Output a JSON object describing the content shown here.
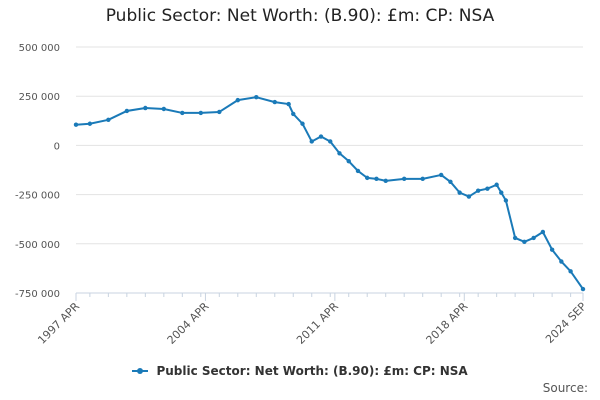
{
  "chart_data": {
    "type": "line",
    "title": "Public Sector: Net Worth: (B.90): £m: CP: NSA",
    "xlabel": "",
    "ylabel": "",
    "ylim": [
      -750000,
      500000
    ],
    "y_ticks": [
      500000,
      250000,
      0,
      -250000,
      -500000,
      -750000
    ],
    "y_tick_labels": [
      "500 000",
      "250 000",
      "0",
      "-250 000",
      "-500 000",
      "-750 000"
    ],
    "x_tick_labels": [
      "1997 APR",
      "2004 APR",
      "2011 APR",
      "2018 APR",
      "2024 SEP"
    ],
    "x_tick_positions": [
      1997.25,
      2004.25,
      2011.25,
      2018.25,
      2024.67
    ],
    "xlim": [
      1997.25,
      2024.67
    ],
    "grid": true,
    "legend_position": "bottom",
    "series": [
      {
        "name": "Public Sector: Net Worth: (B.90): £m: CP: NSA",
        "color": "#1a7ab8",
        "x": [
          1997.25,
          1998.0,
          1999.0,
          2000.0,
          2001.0,
          2002.0,
          2003.0,
          2004.0,
          2005.0,
          2006.0,
          2007.0,
          2008.0,
          2008.75,
          2009.0,
          2009.5,
          2010.0,
          2010.5,
          2011.0,
          2011.5,
          2012.0,
          2012.5,
          2013.0,
          2013.5,
          2014.0,
          2015.0,
          2016.0,
          2017.0,
          2017.5,
          2018.0,
          2018.5,
          2019.0,
          2019.5,
          2020.0,
          2020.25,
          2020.5,
          2021.0,
          2021.5,
          2022.0,
          2022.5,
          2023.0,
          2023.5,
          2024.0,
          2024.67
        ],
        "values": [
          105000,
          110000,
          130000,
          175000,
          190000,
          185000,
          165000,
          165000,
          170000,
          230000,
          245000,
          220000,
          210000,
          160000,
          110000,
          20000,
          45000,
          20000,
          -40000,
          -80000,
          -130000,
          -165000,
          -170000,
          -180000,
          -170000,
          -170000,
          -150000,
          -185000,
          -240000,
          -260000,
          -230000,
          -220000,
          -200000,
          -240000,
          -280000,
          -470000,
          -490000,
          -470000,
          -440000,
          -530000,
          -590000,
          -640000,
          -730000
        ]
      }
    ]
  },
  "legend": {
    "label": "Public Sector: Net Worth: (B.90): £m: CP: NSA"
  },
  "credit": {
    "label": "Source:"
  }
}
